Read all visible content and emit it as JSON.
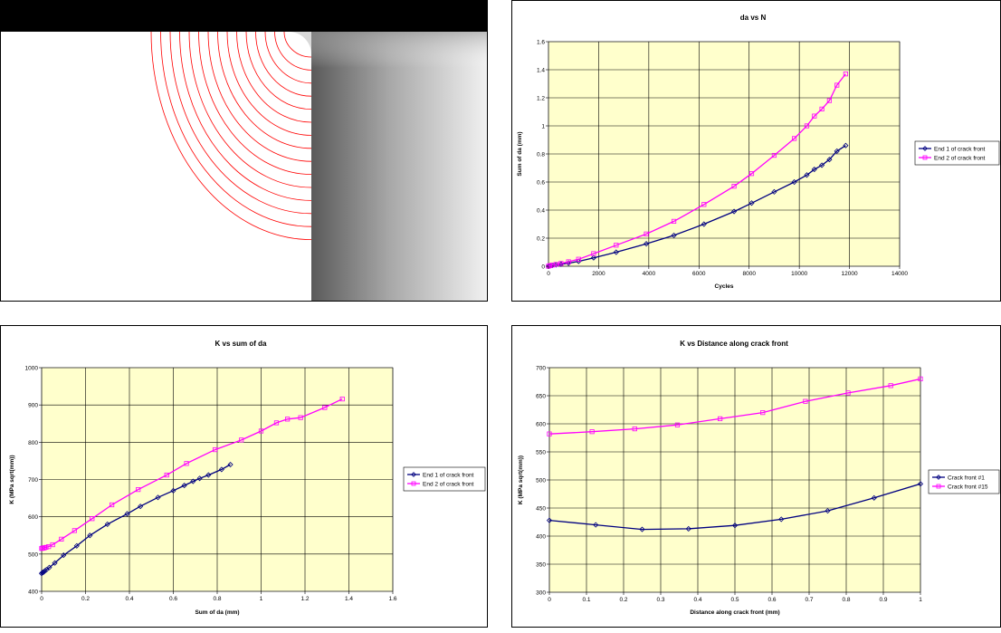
{
  "colors": {
    "plot_bg": "#ffffcc",
    "series_navy": "#000080",
    "series_magenta": "#ff00ff",
    "crack_red": "#ff0000"
  },
  "chart_data": [
    {
      "type": "line",
      "title": "da vs N",
      "xlabel": "Cycles",
      "ylabel": "Sum of da (mm)",
      "xlim": [
        0,
        14000
      ],
      "ylim": [
        0,
        1.6
      ],
      "xticks": [
        "0",
        "2000",
        "4000",
        "6000",
        "8000",
        "10000",
        "12000",
        "14000"
      ],
      "yticks": [
        "0",
        "0.2",
        "0.4",
        "0.6",
        "0.8",
        "1",
        "1.2",
        "1.4",
        "1.6"
      ],
      "grid": true,
      "legend_position": "right",
      "series": [
        {
          "name": "End 1 of crack front",
          "marker": "diamond",
          "x": [
            0,
            50,
            150,
            300,
            500,
            800,
            1200,
            1800,
            2700,
            3900,
            5000,
            6200,
            7400,
            8100,
            9000,
            9800,
            10300,
            10600,
            10900,
            11200,
            11500,
            11850
          ],
          "y": [
            0,
            0.003,
            0.006,
            0.01,
            0.015,
            0.022,
            0.035,
            0.06,
            0.1,
            0.16,
            0.22,
            0.3,
            0.39,
            0.45,
            0.53,
            0.6,
            0.65,
            0.69,
            0.72,
            0.76,
            0.82,
            0.86
          ]
        },
        {
          "name": "End 2 of crack front",
          "marker": "square",
          "x": [
            0,
            50,
            150,
            300,
            500,
            800,
            1200,
            1800,
            2700,
            3900,
            5000,
            6200,
            7400,
            8100,
            9000,
            9800,
            10300,
            10600,
            10900,
            11200,
            11500,
            11850
          ],
          "y": [
            0,
            0.004,
            0.008,
            0.013,
            0.02,
            0.032,
            0.05,
            0.09,
            0.15,
            0.23,
            0.32,
            0.44,
            0.57,
            0.66,
            0.79,
            0.91,
            1.0,
            1.07,
            1.12,
            1.18,
            1.29,
            1.37
          ]
        }
      ]
    },
    {
      "type": "line",
      "title": "K vs sum of da",
      "xlabel": "Sum of da (mm)",
      "ylabel": "K (MPa sqrt(mm))",
      "xlim": [
        0,
        1.6
      ],
      "ylim": [
        400,
        1000
      ],
      "xticks": [
        "0",
        "0.2",
        "0.4",
        "0.6",
        "0.8",
        "1",
        "1.2",
        "1.4",
        "1.6"
      ],
      "yticks": [
        "400",
        "500",
        "600",
        "700",
        "800",
        "900",
        "1000"
      ],
      "grid": true,
      "legend_position": "right",
      "series": [
        {
          "name": "End 1 of crack front",
          "marker": "diamond",
          "x": [
            0,
            0.003,
            0.006,
            0.01,
            0.015,
            0.022,
            0.035,
            0.06,
            0.1,
            0.16,
            0.22,
            0.3,
            0.39,
            0.45,
            0.53,
            0.6,
            0.65,
            0.69,
            0.72,
            0.76,
            0.82,
            0.86
          ],
          "y": [
            448,
            450,
            451,
            452,
            455,
            458,
            464,
            476,
            497,
            522,
            550,
            580,
            608,
            628,
            652,
            670,
            684,
            695,
            703,
            712,
            727,
            740
          ]
        },
        {
          "name": "End 2 of crack front",
          "marker": "square",
          "x": [
            0,
            0.004,
            0.008,
            0.013,
            0.02,
            0.032,
            0.05,
            0.09,
            0.15,
            0.23,
            0.32,
            0.44,
            0.57,
            0.66,
            0.79,
            0.91,
            1.0,
            1.07,
            1.12,
            1.18,
            1.29,
            1.37
          ],
          "y": [
            515,
            516,
            516,
            517,
            518,
            520,
            525,
            540,
            563,
            595,
            632,
            673,
            712,
            743,
            780,
            806,
            830,
            852,
            862,
            866,
            893,
            916
          ]
        }
      ]
    },
    {
      "type": "line",
      "title": "K vs Distance along crack front",
      "xlabel": "Distance along crack front (mm)",
      "ylabel": "K (MPa sqrt(mm))",
      "xlim": [
        0,
        1
      ],
      "ylim": [
        300,
        700
      ],
      "xticks": [
        "0",
        "0.1",
        "0.2",
        "0.3",
        "0.4",
        "0.5",
        "0.6",
        "0.7",
        "0.8",
        "0.9",
        "1"
      ],
      "yticks": [
        "300",
        "350",
        "400",
        "450",
        "500",
        "550",
        "600",
        "650",
        "700"
      ],
      "grid": true,
      "legend_position": "right",
      "series": [
        {
          "name": "Crack front #1",
          "marker": "diamond",
          "x": [
            0,
            0.125,
            0.25,
            0.375,
            0.5,
            0.625,
            0.75,
            0.875,
            1.0
          ],
          "y": [
            428,
            420,
            412,
            413,
            419,
            430,
            445,
            468,
            493
          ]
        },
        {
          "name": "Crack front #15",
          "marker": "square",
          "x": [
            0,
            0.115,
            0.23,
            0.345,
            0.46,
            0.575,
            0.69,
            0.805,
            0.92,
            1.0
          ],
          "y": [
            582,
            586,
            591,
            598,
            609,
            620,
            640,
            655,
            668,
            680
          ]
        }
      ]
    }
  ]
}
